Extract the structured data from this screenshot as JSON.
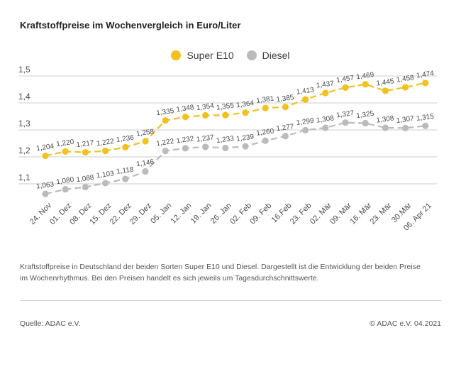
{
  "title": "Kraftstoffpreise im Wochenvergleich in Euro/Liter",
  "legend": {
    "items": [
      {
        "label": "Super E10",
        "color": "#F2C11E"
      },
      {
        "label": "Diesel",
        "color": "#BBBBBB"
      }
    ]
  },
  "footnote": "Kraftstoffpreise in Deutschland der beiden Sorten Super E10 und Diesel. Dargestellt ist die Entwicklung der beiden Preise im Wochenrhythmus. Bei den Preisen handelt es sich jeweils um Tagesdurchschnittswerte.",
  "source": "Quelle: ADAC e.V.",
  "copyright": "© ADAC e.V. 04.2021",
  "colors": {
    "grid": "#cccccc",
    "axis_text": "#4b4b4b",
    "value_label_text": "#4a4a4a"
  },
  "chart_data": {
    "type": "line",
    "title": "Kraftstoffpreise im Wochenvergleich in Euro/Liter",
    "unit": "Euro/Liter",
    "categories": [
      "24. Nov",
      "01. Dez",
      "08. Dez",
      "15. Dez",
      "22. Dez",
      "29. Dez",
      "05. Jan",
      "12. Jan",
      "19. Jan",
      "26. Jan",
      "02. Feb",
      "09. Feb",
      "16.Feb",
      "23. Feb",
      "02. Mär",
      "09. Mär",
      "16. Mär",
      "23. Mär",
      "30.Mär",
      "06. Apr 21"
    ],
    "series": [
      {
        "name": "Super E10",
        "color": "#F2C11E",
        "values": [
          1.204,
          1.22,
          1.217,
          1.222,
          1.236,
          1.258,
          1.335,
          1.348,
          1.354,
          1.355,
          1.364,
          1.381,
          1.385,
          1.413,
          1.437,
          1.457,
          1.469,
          1.445,
          1.458,
          1.474
        ]
      },
      {
        "name": "Diesel",
        "color": "#BBBBBB",
        "values": [
          1.063,
          1.08,
          1.088,
          1.103,
          1.118,
          1.146,
          1.222,
          1.232,
          1.237,
          1.233,
          1.239,
          1.26,
          1.277,
          1.299,
          1.308,
          1.327,
          1.325,
          1.308,
          1.307,
          1.315
        ]
      }
    ],
    "yticks": [
      1.5,
      1.4,
      1.3,
      1.2,
      1.1
    ],
    "ylim": [
      1.05,
      1.5
    ],
    "grid": true,
    "legend_position": "top",
    "value_labels": true,
    "line_style": "dashed",
    "decimal_separator": ","
  }
}
